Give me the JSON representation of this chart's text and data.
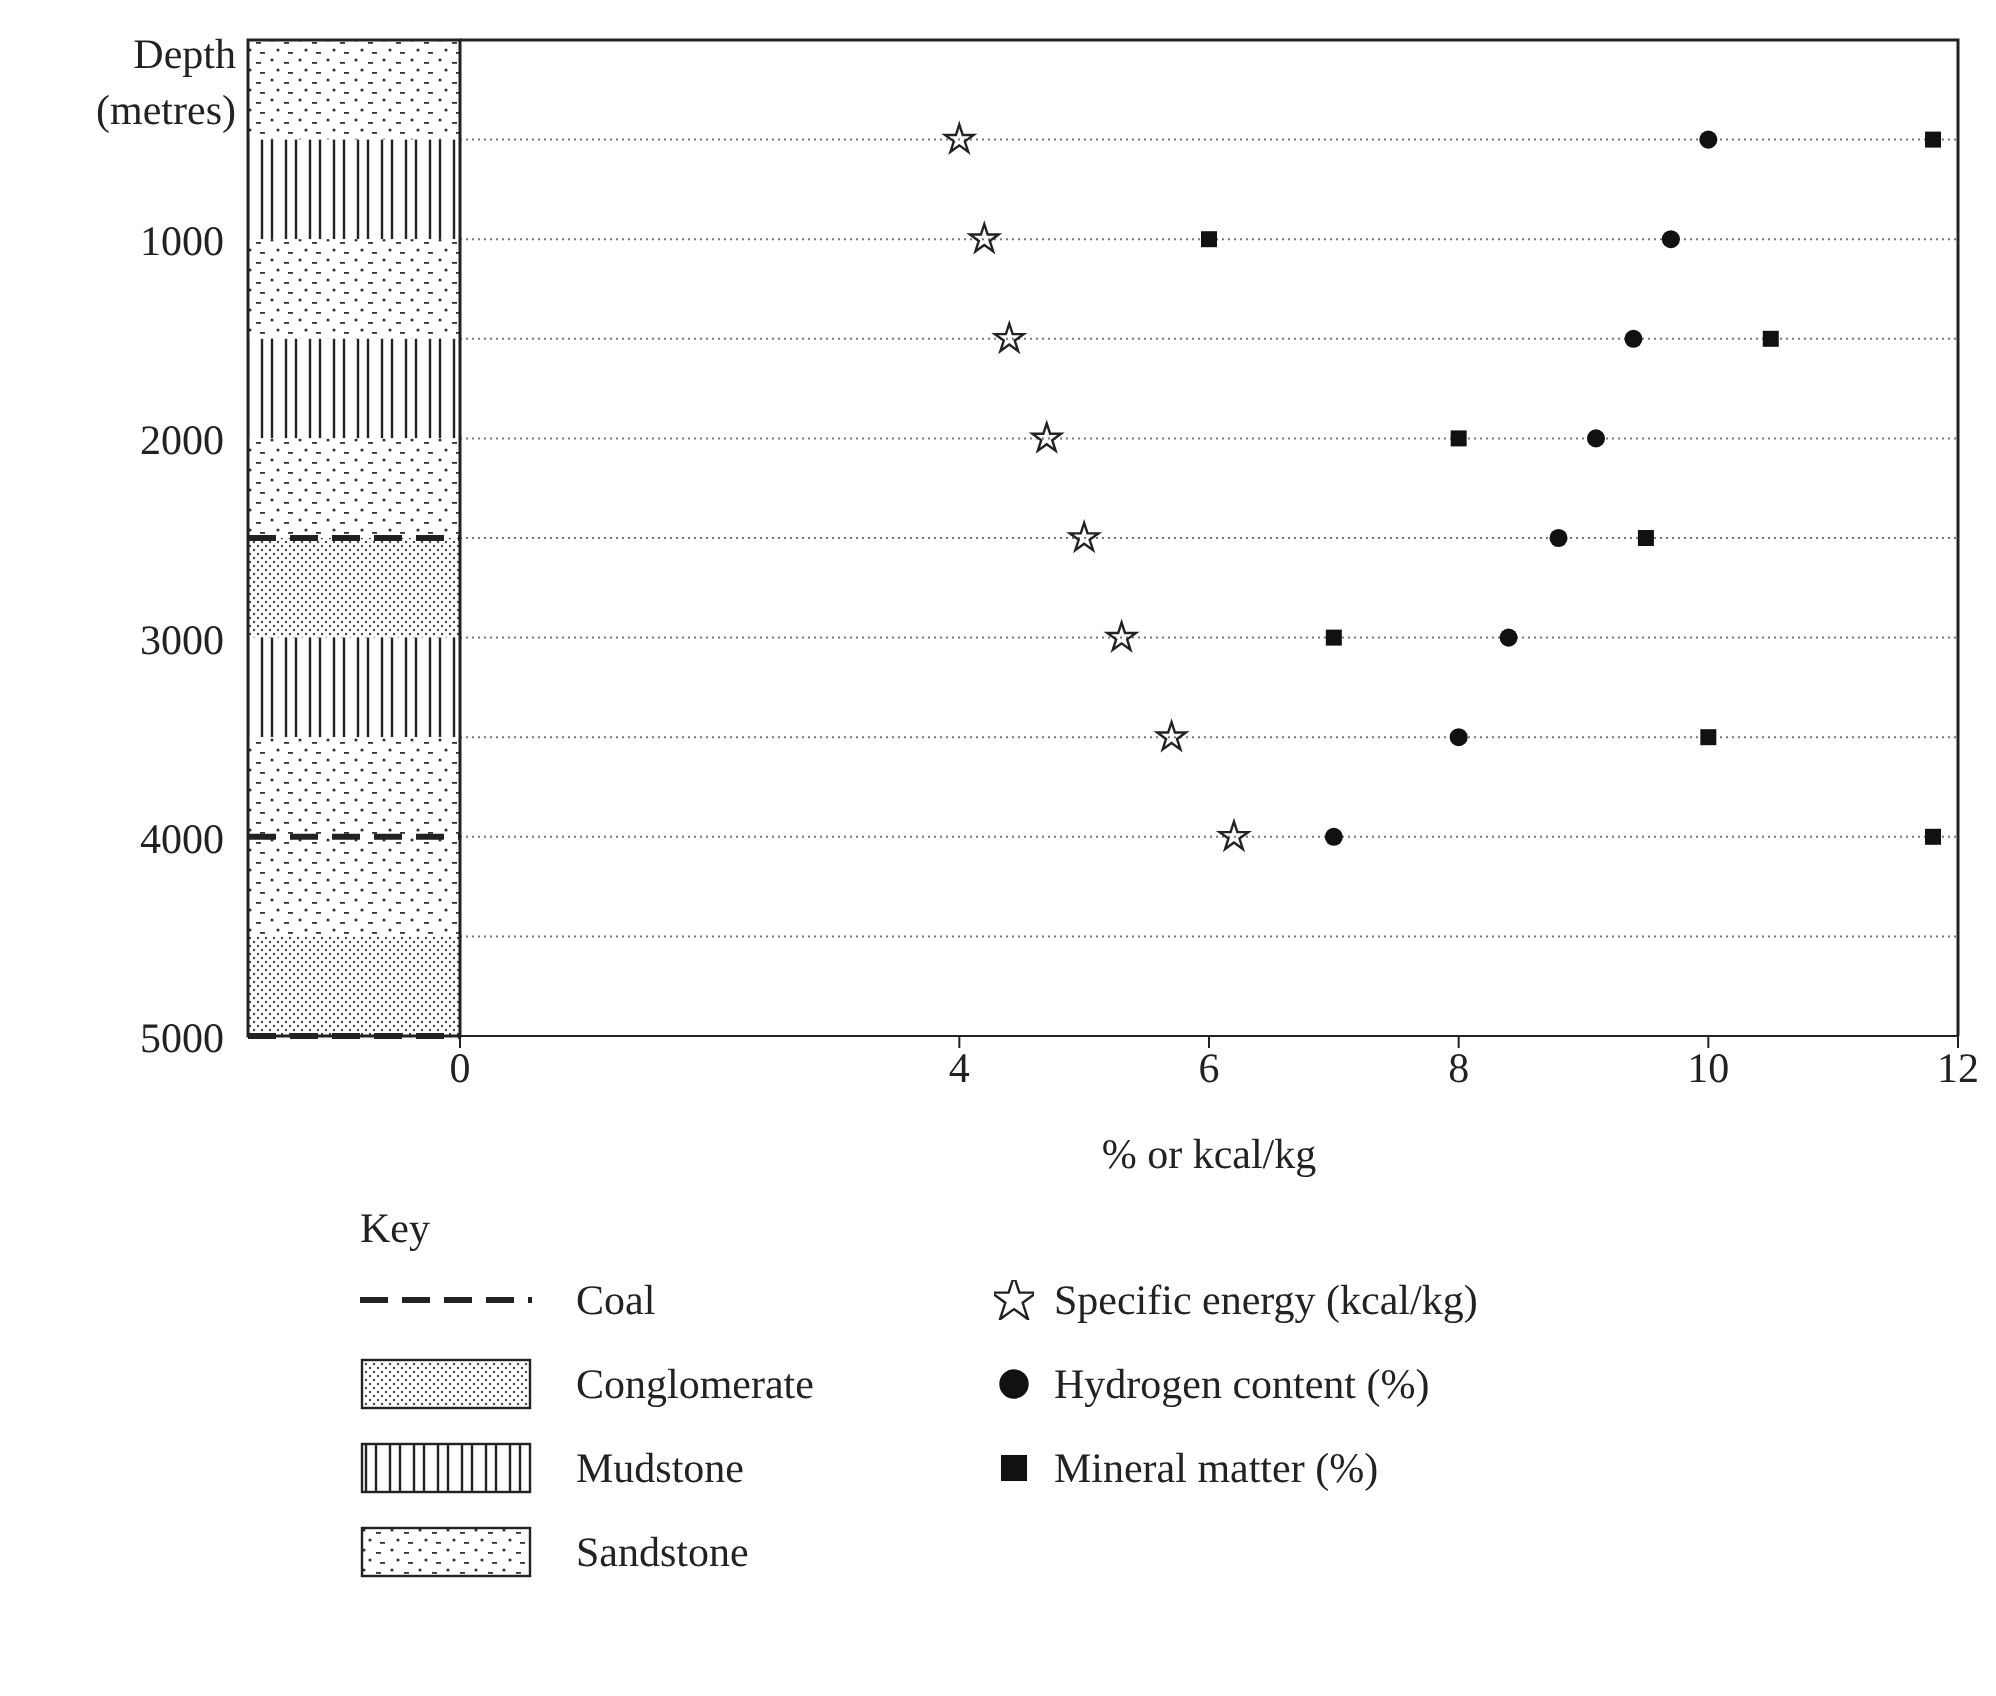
{
  "chart_data": {
    "type": "scatter",
    "xlabel": "% or kcal/kg",
    "ylabel": "Depth (metres)",
    "legend_title": "Key",
    "series": [
      {
        "name": "Specific energy (kcal/kg)",
        "color": "#222222",
        "marker": "star",
        "x": [
          4.0,
          4.2,
          4.4,
          4.7,
          5.0,
          5.3,
          5.7,
          6.2
        ],
        "values": [
          500,
          1000,
          1500,
          2000,
          2500,
          3000,
          3500,
          4000
        ]
      },
      {
        "name": "Hydrogen content (%)",
        "color": "#111111",
        "marker": "circle",
        "x": [
          10.0,
          9.7,
          9.4,
          9.1,
          8.8,
          8.4,
          8.0,
          7.0
        ],
        "values": [
          500,
          1000,
          1500,
          2000,
          2500,
          3000,
          3500,
          4000
        ]
      },
      {
        "name": "Mineral matter (%)",
        "color": "#111111",
        "marker": "square",
        "x": [
          11.8,
          6.0,
          10.5,
          8.0,
          9.5,
          7.0,
          10.0,
          11.8
        ],
        "values": [
          500,
          1000,
          1500,
          2000,
          2500,
          3000,
          3500,
          4000
        ]
      }
    ],
    "xlim": [
      0,
      12
    ],
    "xticks": [
      0,
      4,
      6,
      8,
      10,
      12
    ],
    "ylim": [
      5000,
      0
    ],
    "yticks": [
      {
        "value": 500,
        "label": null
      },
      1000,
      {
        "value": 1500,
        "label": null
      },
      2000,
      {
        "value": 2500,
        "label": null
      },
      3000,
      {
        "value": 3500,
        "label": null
      },
      4000,
      {
        "value": 4500,
        "label": null
      },
      5000
    ],
    "grid": "y",
    "legend": "bottom",
    "annotations": [
      "Coal",
      "Conglomerate",
      "Mudstone",
      "Sandstone"
    ]
  }
}
